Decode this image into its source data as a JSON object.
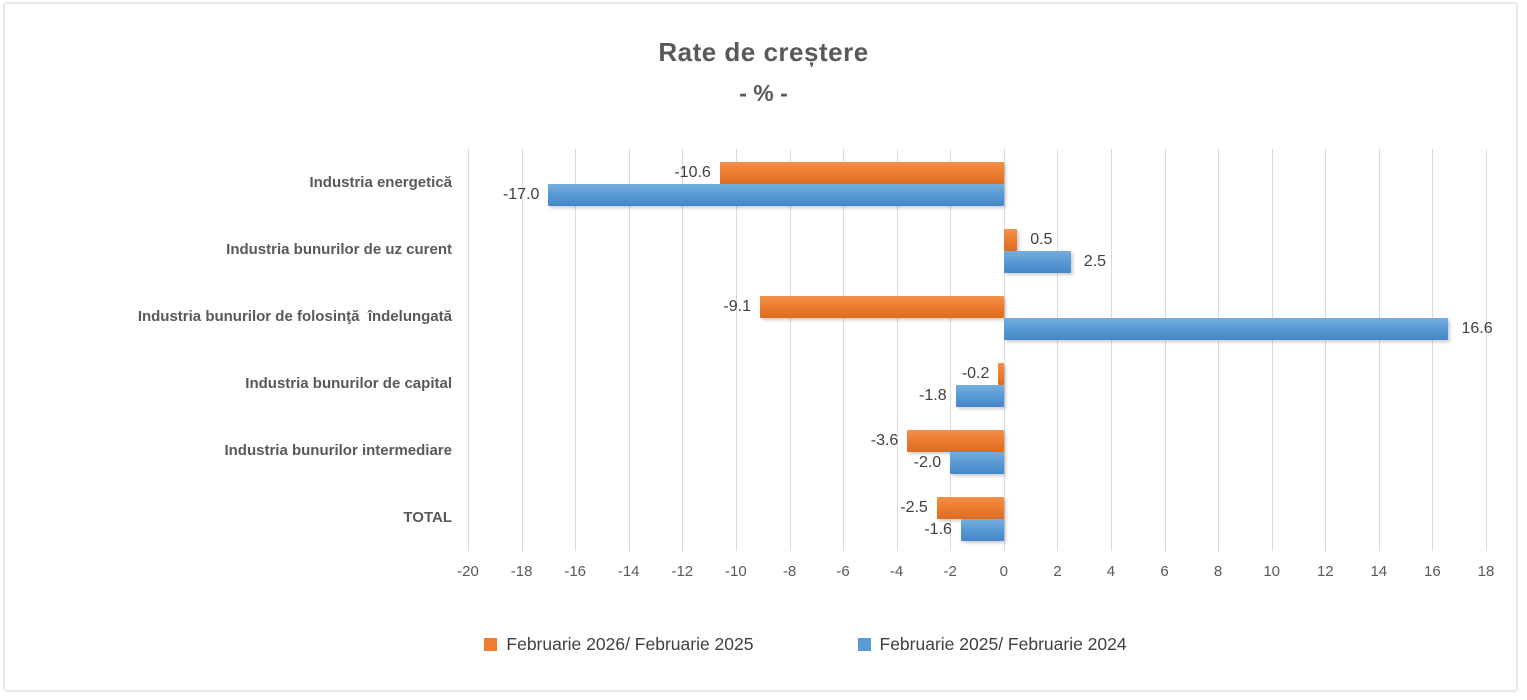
{
  "chart_data": {
    "type": "bar",
    "orientation": "horizontal",
    "title": "Rate de creștere",
    "subtitle": "- % -",
    "categories": [
      "Industria energetică",
      "Industria bunurilor de uz curent",
      "Industria bunurilor de folosinţă  îndelungată",
      "Industria bunurilor de capital",
      "Industria bunurilor intermediare",
      "TOTAL"
    ],
    "series": [
      {
        "name": "Februarie 2026/ Februarie 2025",
        "color": "#ED7D31",
        "values": [
          -10.6,
          0.5,
          -9.1,
          -0.2,
          -3.6,
          -2.5
        ]
      },
      {
        "name": "Februarie 2025/ Februarie 2024",
        "color": "#5B9BD5",
        "values": [
          -17.0,
          2.5,
          16.6,
          -1.8,
          -2.0,
          -1.6
        ]
      }
    ],
    "data_labels": {
      "shown": true,
      "decimals": 1
    },
    "xlim": [
      -20,
      18
    ],
    "xtick_step": 2,
    "xtick_labels": [
      "-20",
      "-18",
      "-16",
      "-14",
      "-12",
      "-10",
      "-8",
      "-6",
      "-4",
      "-2",
      "0",
      "2",
      "4",
      "6",
      "8",
      "10",
      "12",
      "14",
      "16",
      "18"
    ],
    "grid": true,
    "legend_position": "bottom",
    "colors": {
      "grid": "#D9D9D9",
      "axis_text": "#595959",
      "title_text": "#595959",
      "value_text": "#404040",
      "chart_border": "#E7E7E7",
      "background": "#FFFFFF"
    }
  }
}
